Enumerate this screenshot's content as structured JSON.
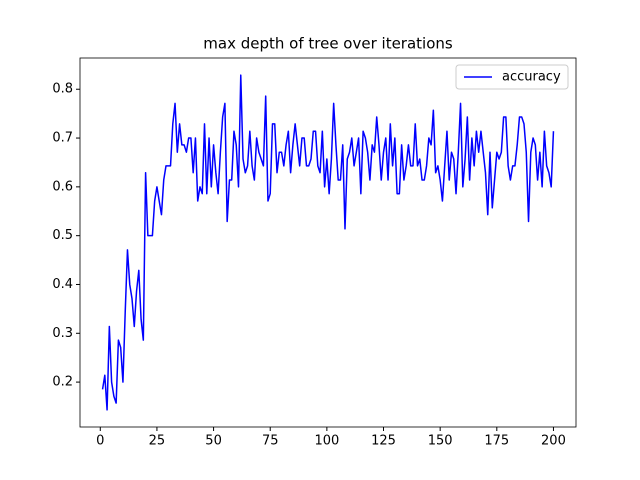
{
  "chart_data": {
    "type": "line",
    "title": "max depth of tree over iterations",
    "x": [
      1,
      2,
      3,
      4,
      5,
      6,
      7,
      8,
      9,
      10,
      11,
      12,
      13,
      14,
      15,
      16,
      17,
      18,
      19,
      20,
      21,
      22,
      23,
      24,
      25,
      26,
      27,
      28,
      29,
      30,
      31,
      32,
      33,
      34,
      35,
      36,
      37,
      38,
      39,
      40,
      41,
      42,
      43,
      44,
      45,
      46,
      47,
      48,
      49,
      50,
      51,
      52,
      53,
      54,
      55,
      56,
      57,
      58,
      59,
      60,
      61,
      62,
      63,
      64,
      65,
      66,
      67,
      68,
      69,
      70,
      71,
      72,
      73,
      74,
      75,
      76,
      77,
      78,
      79,
      80,
      81,
      82,
      83,
      84,
      85,
      86,
      87,
      88,
      89,
      90,
      91,
      92,
      93,
      94,
      95,
      96,
      97,
      98,
      99,
      100,
      101,
      102,
      103,
      104,
      105,
      106,
      107,
      108,
      109,
      110,
      111,
      112,
      113,
      114,
      115,
      116,
      117,
      118,
      119,
      120,
      121,
      122,
      123,
      124,
      125,
      126,
      127,
      128,
      129,
      130,
      131,
      132,
      133,
      134,
      135,
      136,
      137,
      138,
      139,
      140,
      141,
      142,
      143,
      144,
      145,
      146,
      147,
      148,
      149,
      150,
      151,
      152,
      153,
      154,
      155,
      156,
      157,
      158,
      159,
      160,
      161,
      162,
      163,
      164,
      165,
      166,
      167,
      168,
      169,
      170,
      171,
      172,
      173,
      174,
      175,
      176,
      177,
      178,
      179,
      180,
      181,
      182,
      183,
      184,
      185,
      186,
      187,
      188,
      189,
      190,
      191,
      192,
      193,
      194,
      195,
      196,
      197,
      198,
      199,
      200
    ],
    "series": [
      {
        "name": "accuracy",
        "color": "#0000ff",
        "values": [
          0.185,
          0.214,
          0.143,
          0.314,
          0.2,
          0.171,
          0.157,
          0.286,
          0.271,
          0.2,
          0.343,
          0.471,
          0.4,
          0.371,
          0.314,
          0.386,
          0.429,
          0.329,
          0.286,
          0.629,
          0.5,
          0.5,
          0.5,
          0.571,
          0.6,
          0.571,
          0.543,
          0.614,
          0.643,
          0.643,
          0.643,
          0.729,
          0.771,
          0.671,
          0.729,
          0.686,
          0.686,
          0.671,
          0.7,
          0.7,
          0.629,
          0.7,
          0.571,
          0.6,
          0.586,
          0.729,
          0.586,
          0.7,
          0.6,
          0.686,
          0.629,
          0.586,
          0.671,
          0.743,
          0.771,
          0.529,
          0.614,
          0.614,
          0.714,
          0.686,
          0.6,
          0.829,
          0.657,
          0.629,
          0.643,
          0.714,
          0.643,
          0.614,
          0.7,
          0.671,
          0.657,
          0.643,
          0.786,
          0.571,
          0.586,
          0.729,
          0.729,
          0.629,
          0.671,
          0.671,
          0.643,
          0.686,
          0.714,
          0.629,
          0.686,
          0.729,
          0.686,
          0.643,
          0.7,
          0.7,
          0.643,
          0.643,
          0.657,
          0.714,
          0.714,
          0.643,
          0.629,
          0.714,
          0.6,
          0.657,
          0.586,
          0.657,
          0.771,
          0.686,
          0.614,
          0.614,
          0.686,
          0.514,
          0.657,
          0.671,
          0.7,
          0.643,
          0.671,
          0.7,
          0.586,
          0.714,
          0.7,
          0.671,
          0.614,
          0.686,
          0.671,
          0.743,
          0.686,
          0.614,
          0.671,
          0.7,
          0.614,
          0.729,
          0.643,
          0.7,
          0.586,
          0.586,
          0.686,
          0.614,
          0.643,
          0.686,
          0.643,
          0.643,
          0.729,
          0.643,
          0.657,
          0.614,
          0.614,
          0.643,
          0.7,
          0.686,
          0.757,
          0.629,
          0.643,
          0.614,
          0.571,
          0.643,
          0.714,
          0.614,
          0.671,
          0.657,
          0.586,
          0.671,
          0.771,
          0.6,
          0.657,
          0.743,
          0.614,
          0.7,
          0.643,
          0.714,
          0.671,
          0.714,
          0.671,
          0.629,
          0.543,
          0.671,
          0.557,
          0.614,
          0.671,
          0.657,
          0.671,
          0.743,
          0.743,
          0.643,
          0.614,
          0.643,
          0.643,
          0.686,
          0.743,
          0.743,
          0.729,
          0.671,
          0.529,
          0.671,
          0.7,
          0.686,
          0.614,
          0.671,
          0.6,
          0.714,
          0.643,
          0.629,
          0.6,
          0.714
        ]
      }
    ],
    "xlim": [
      -8.95,
      209.95
    ],
    "xticks": [
      0,
      25,
      50,
      75,
      100,
      125,
      150,
      175,
      200
    ],
    "ylim": [
      0.108,
      0.864
    ],
    "yticks": [
      0.2,
      0.3,
      0.4,
      0.5,
      0.6,
      0.7,
      0.8
    ],
    "legend": "upper right"
  }
}
